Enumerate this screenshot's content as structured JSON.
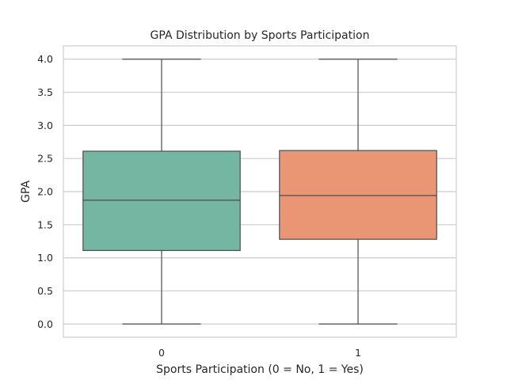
{
  "chart_data": {
    "type": "box",
    "title": "GPA Distribution by Sports Participation",
    "xlabel": "Sports Participation (0 = No, 1 = Yes)",
    "ylabel": "GPA",
    "categories": [
      "0",
      "1"
    ],
    "boxes": [
      {
        "category": "0",
        "min": 0.0,
        "q1": 1.11,
        "median": 1.87,
        "q3": 2.61,
        "max": 4.0,
        "color": "#73b6a1"
      },
      {
        "category": "1",
        "min": 0.0,
        "q1": 1.28,
        "median": 1.94,
        "q3": 2.62,
        "max": 4.0,
        "color": "#ea9675"
      }
    ],
    "yticks": [
      "0.0",
      "0.5",
      "1.0",
      "1.5",
      "2.0",
      "2.5",
      "3.0",
      "3.5",
      "4.0"
    ],
    "ylim": [
      -0.2,
      4.2
    ],
    "grid": true,
    "colors": {
      "grid": "#cccccc",
      "frame": "#cccccc",
      "lines": "#4d4d4d"
    }
  }
}
